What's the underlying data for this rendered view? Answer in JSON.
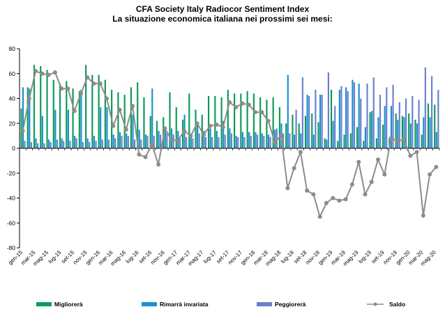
{
  "chart_data": {
    "type": "bar",
    "title": "CFA Society Italy Radiocor Sentiment Index",
    "subtitle": "La situazione economica italiana nei prossimi sei mesi:",
    "xlabel": "",
    "ylabel": "",
    "ylim": [
      -80,
      80
    ],
    "yticks": [
      -80,
      -60,
      -40,
      -20,
      0,
      20,
      40,
      60,
      80
    ],
    "grid": false,
    "legend_position": "bottom",
    "categories": [
      "gen-15",
      "feb-15",
      "mar-15",
      "apr-15",
      "mag-15",
      "giu-15",
      "lug-15",
      "ago-15",
      "set-15",
      "ott-15",
      "nov-15",
      "dic-15",
      "gen-16",
      "feb-16",
      "mar-16",
      "apr-16",
      "mag-16",
      "giu-16",
      "lug-16",
      "ago-16",
      "set-16",
      "ott-16",
      "nov-16",
      "dic-16",
      "gen-17",
      "feb-17",
      "mar-17",
      "apr-17",
      "mag-17",
      "giu-17",
      "lug-17",
      "ago-17",
      "set-17",
      "ott-17",
      "nov-17",
      "dic-17",
      "gen-18",
      "feb-18",
      "mar-18",
      "apr-18",
      "mag-18",
      "giu-18",
      "lug-18",
      "ago-18",
      "set-18",
      "ott-18",
      "nov-18",
      "dic-18",
      "gen-19",
      "feb-19",
      "mar-19",
      "apr-19",
      "mag-19",
      "giu-19",
      "lug-19",
      "ago-19",
      "set-19",
      "ott-19",
      "nov-19",
      "dic-19",
      "gen-20",
      "feb-20",
      "mar-20",
      "apr-20",
      "mag-20"
    ],
    "tick_labels": [
      "gen-15",
      "mar-15",
      "mag-15",
      "lug-15",
      "set-15",
      "nov-15",
      "gen-16",
      "mar-16",
      "mag-16",
      "lug-16",
      "set-16",
      "nov-16",
      "gen-17",
      "mar-17",
      "mag-17",
      "lug-17",
      "set-17",
      "nov-17",
      "gen-18",
      "mar-18",
      "mag-18",
      "lug-18",
      "set-18",
      "nov-18",
      "gen-19",
      "mar-19",
      "mag-19",
      "lug-19",
      "set-19",
      "nov-19",
      "gen-20",
      "mar-20",
      "mag-20"
    ],
    "series": [
      {
        "name": "Migliorerà",
        "type": "bar",
        "color": "#0e9a5a",
        "values": [
          32,
          49,
          67,
          66,
          63,
          55,
          52,
          54,
          48,
          46,
          67,
          59,
          59,
          55,
          47,
          45,
          43,
          49,
          53,
          41,
          26,
          22,
          25,
          45,
          33,
          23,
          44,
          31,
          27,
          42,
          42,
          41,
          47,
          44,
          44,
          46,
          44,
          41,
          39,
          41,
          33,
          20,
          27,
          20,
          26,
          28,
          21,
          8,
          47,
          6,
          11,
          12,
          17,
          6,
          29,
          8,
          19,
          8,
          28,
          26,
          28,
          23,
          11,
          36,
          35
        ]
      },
      {
        "name": "Rimarrà invariata",
        "type": "bar",
        "color": "#1c8fcf",
        "values": [
          49,
          48,
          8,
          26,
          7,
          31,
          8,
          31,
          10,
          47,
          8,
          10,
          33,
          33,
          11,
          13,
          12,
          27,
          15,
          11,
          48,
          14,
          15,
          16,
          14,
          27,
          11,
          21,
          14,
          16,
          14,
          22,
          16,
          10,
          13,
          13,
          13,
          12,
          11,
          15,
          20,
          59,
          11,
          12,
          43,
          11,
          43,
          7,
          22,
          47,
          49,
          55,
          52,
          17,
          30,
          25,
          34,
          34,
          23,
          25,
          20,
          20,
          25,
          25,
          13
        ]
      },
      {
        "name": "Peggiorerà",
        "type": "bar",
        "color": "#6b7fcf",
        "values": [
          6,
          5,
          4,
          4,
          5,
          7,
          6,
          6,
          8,
          5,
          5,
          6,
          7,
          7,
          8,
          10,
          10,
          7,
          7,
          10,
          10,
          11,
          12,
          11,
          8,
          9,
          8,
          12,
          9,
          9,
          9,
          11,
          12,
          9,
          9,
          10,
          11,
          10,
          9,
          16,
          12,
          12,
          31,
          57,
          42,
          47,
          43,
          61,
          34,
          50,
          46,
          53,
          40,
          52,
          57,
          43,
          49,
          51,
          37,
          40,
          42,
          39,
          65,
          58,
          47
        ]
      },
      {
        "name": "Saldo",
        "type": "line",
        "color": "#8c8c8c",
        "values": [
          14,
          40,
          62,
          60,
          59,
          61,
          48,
          48,
          30,
          44,
          57,
          52,
          52,
          40,
          18,
          31,
          15,
          34,
          -5,
          -7,
          3,
          -13,
          16,
          7,
          6,
          14,
          10,
          20,
          11,
          18,
          19,
          17,
          37,
          33,
          36,
          35,
          29,
          29,
          22,
          5,
          10,
          -32,
          -16,
          -3,
          -34,
          -37,
          -55,
          -44,
          -40,
          -42,
          -41,
          -29,
          -11,
          -37,
          -27,
          -9,
          -21,
          8,
          6,
          7,
          -6,
          -3,
          -54,
          -21,
          -15
        ]
      }
    ]
  }
}
